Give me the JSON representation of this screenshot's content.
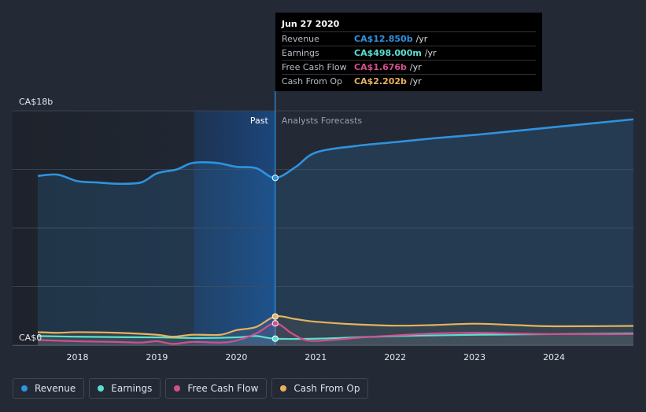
{
  "chart_data": {
    "type": "line",
    "x_ticks": [
      2018,
      2019,
      2020,
      2021,
      2022,
      2023,
      2024
    ],
    "ylim": [
      0,
      18
    ],
    "y_axis_labels": {
      "top": "CA$18b",
      "bottom": "CA$0"
    },
    "past_label": "Past",
    "forecast_label": "Analysts Forecasts",
    "forecast_start": 2020.49,
    "series": [
      {
        "name": "Revenue",
        "color": "#2f93e0",
        "points": [
          [
            2017.5,
            13.0
          ],
          [
            2017.75,
            13.1
          ],
          [
            2018.0,
            12.6
          ],
          [
            2018.25,
            12.5
          ],
          [
            2018.5,
            12.4
          ],
          [
            2018.8,
            12.5
          ],
          [
            2019.0,
            13.2
          ],
          [
            2019.25,
            13.5
          ],
          [
            2019.45,
            14.0
          ],
          [
            2019.75,
            14.0
          ],
          [
            2020.0,
            13.7
          ],
          [
            2020.25,
            13.6
          ],
          [
            2020.49,
            12.85
          ],
          [
            2020.75,
            13.7
          ],
          [
            2021.0,
            14.8
          ],
          [
            2021.5,
            15.3
          ],
          [
            2022.0,
            15.6
          ],
          [
            2022.5,
            15.9
          ],
          [
            2023.0,
            16.15
          ],
          [
            2023.5,
            16.45
          ],
          [
            2024.0,
            16.75
          ],
          [
            2024.5,
            17.05
          ],
          [
            2025.0,
            17.35
          ]
        ]
      },
      {
        "name": "Earnings",
        "color": "#5ae0d2",
        "points": [
          [
            2017.5,
            0.7
          ],
          [
            2018.0,
            0.65
          ],
          [
            2018.5,
            0.62
          ],
          [
            2019.0,
            0.6
          ],
          [
            2019.5,
            0.55
          ],
          [
            2020.0,
            0.6
          ],
          [
            2020.25,
            0.7
          ],
          [
            2020.49,
            0.498
          ],
          [
            2021.0,
            0.5
          ],
          [
            2021.5,
            0.6
          ],
          [
            2022.0,
            0.7
          ],
          [
            2022.5,
            0.75
          ],
          [
            2023.0,
            0.8
          ],
          [
            2024.0,
            0.85
          ],
          [
            2025.0,
            0.9
          ]
        ]
      },
      {
        "name": "Free Cash Flow",
        "color": "#d24f8c",
        "points": [
          [
            2017.5,
            0.4
          ],
          [
            2018.0,
            0.3
          ],
          [
            2018.5,
            0.25
          ],
          [
            2018.8,
            0.2
          ],
          [
            2019.0,
            0.3
          ],
          [
            2019.2,
            0.1
          ],
          [
            2019.45,
            0.25
          ],
          [
            2019.8,
            0.2
          ],
          [
            2020.0,
            0.35
          ],
          [
            2020.25,
            0.9
          ],
          [
            2020.49,
            1.676
          ],
          [
            2020.7,
            0.9
          ],
          [
            2020.9,
            0.35
          ],
          [
            2021.2,
            0.4
          ],
          [
            2021.6,
            0.6
          ],
          [
            2022.0,
            0.75
          ],
          [
            2022.5,
            0.9
          ],
          [
            2023.0,
            0.95
          ],
          [
            2023.5,
            0.9
          ],
          [
            2024.0,
            0.85
          ],
          [
            2025.0,
            0.85
          ]
        ]
      },
      {
        "name": "Cash From Op",
        "color": "#e9b15c",
        "points": [
          [
            2017.5,
            1.0
          ],
          [
            2017.75,
            0.95
          ],
          [
            2018.0,
            1.0
          ],
          [
            2018.5,
            0.95
          ],
          [
            2019.0,
            0.8
          ],
          [
            2019.2,
            0.65
          ],
          [
            2019.45,
            0.8
          ],
          [
            2019.8,
            0.8
          ],
          [
            2020.0,
            1.15
          ],
          [
            2020.25,
            1.4
          ],
          [
            2020.49,
            2.202
          ],
          [
            2020.75,
            2.0
          ],
          [
            2021.0,
            1.8
          ],
          [
            2021.5,
            1.6
          ],
          [
            2022.0,
            1.5
          ],
          [
            2022.5,
            1.55
          ],
          [
            2023.0,
            1.65
          ],
          [
            2023.5,
            1.55
          ],
          [
            2024.0,
            1.45
          ],
          [
            2025.0,
            1.48
          ]
        ]
      }
    ]
  },
  "tooltip": {
    "date": "Jun 27 2020",
    "rows": [
      {
        "label": "Revenue",
        "value": "CA$12.850b",
        "unit": "/yr",
        "color": "#2f93e0"
      },
      {
        "label": "Earnings",
        "value": "CA$498.000m",
        "unit": "/yr",
        "color": "#5ae0d2"
      },
      {
        "label": "Free Cash Flow",
        "value": "CA$1.676b",
        "unit": "/yr",
        "color": "#d24f8c"
      },
      {
        "label": "Cash From Op",
        "value": "CA$2.202b",
        "unit": "/yr",
        "color": "#e9b15c"
      }
    ]
  },
  "legend": [
    {
      "label": "Revenue",
      "color": "#2f93e0"
    },
    {
      "label": "Earnings",
      "color": "#5ae0d2"
    },
    {
      "label": "Free Cash Flow",
      "color": "#d24f8c"
    },
    {
      "label": "Cash From Op",
      "color": "#e9b15c"
    }
  ]
}
